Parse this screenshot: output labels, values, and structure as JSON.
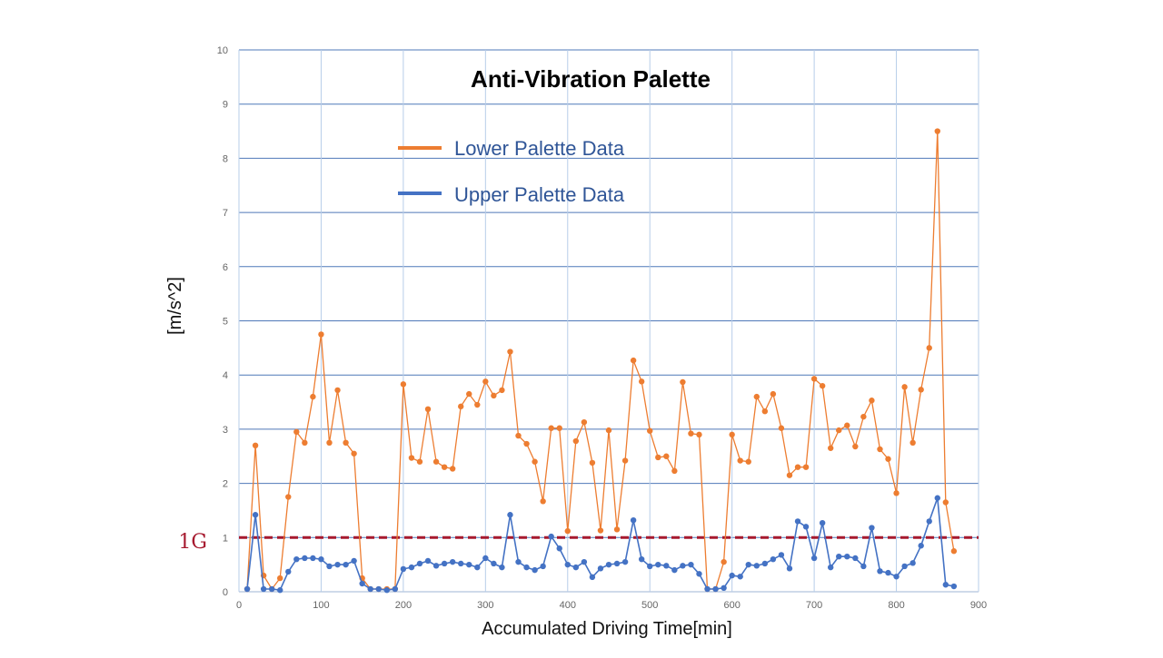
{
  "chart_data": {
    "type": "line",
    "title": "Anti-Vibration Palette",
    "xlabel": "Accumulated Driving Time[min]",
    "ylabel": "[m/s^2]",
    "xlim": [
      0,
      900
    ],
    "ylim": [
      0,
      10
    ],
    "x_ticks": [
      "0",
      "100",
      "200",
      "300",
      "400",
      "500",
      "600",
      "700",
      "800",
      "900"
    ],
    "y_ticks": [
      "0",
      "1",
      "2",
      "3",
      "4",
      "5",
      "6",
      "7",
      "8",
      "9",
      "10"
    ],
    "grid": true,
    "legend_position": "top-center",
    "reference_line": {
      "value": 1,
      "label": "1G",
      "color": "#a6192e",
      "style": "dashed"
    },
    "x": [
      10,
      20,
      30,
      40,
      50,
      60,
      70,
      80,
      90,
      100,
      110,
      120,
      130,
      140,
      150,
      160,
      170,
      180,
      190,
      200,
      210,
      220,
      230,
      240,
      250,
      260,
      270,
      280,
      290,
      300,
      310,
      320,
      330,
      340,
      350,
      360,
      370,
      380,
      390,
      400,
      410,
      420,
      430,
      440,
      450,
      460,
      470,
      480,
      490,
      500,
      510,
      520,
      530,
      540,
      550,
      560,
      570,
      580,
      590,
      600,
      610,
      620,
      630,
      640,
      650,
      660,
      670,
      680,
      690,
      700,
      710,
      720,
      730,
      740,
      750,
      760,
      770,
      780,
      790,
      800,
      810,
      820,
      830,
      840,
      850,
      860,
      870
    ],
    "series": [
      {
        "name": "Lower Palette Data",
        "color": "#ed7d31",
        "values": [
          0.05,
          2.7,
          0.3,
          0.05,
          0.25,
          1.75,
          2.95,
          2.75,
          3.6,
          4.75,
          2.75,
          3.72,
          2.75,
          2.55,
          0.25,
          0.05,
          0.05,
          0.05,
          0.05,
          3.83,
          2.47,
          2.4,
          3.37,
          2.4,
          2.3,
          2.27,
          3.42,
          3.65,
          3.45,
          3.88,
          3.62,
          3.72,
          4.43,
          2.88,
          2.73,
          2.4,
          1.67,
          3.02,
          3.02,
          1.12,
          2.78,
          3.13,
          2.38,
          1.13,
          2.98,
          1.15,
          2.42,
          4.27,
          3.88,
          2.97,
          2.48,
          2.5,
          2.23,
          3.87,
          2.92,
          2.9,
          0.05,
          0.05,
          0.55,
          2.9,
          2.42,
          2.4,
          3.6,
          3.33,
          3.65,
          3.02,
          2.15,
          2.3,
          2.3,
          3.93,
          3.8,
          2.65,
          2.98,
          3.07,
          2.68,
          3.23,
          3.53,
          2.63,
          2.45,
          1.82,
          3.78,
          2.75,
          3.73,
          4.5,
          8.5,
          1.65,
          0.75
        ]
      },
      {
        "name": "Upper Palette Data",
        "color": "#4472c4",
        "values": [
          0.05,
          1.42,
          0.05,
          0.05,
          0.03,
          0.37,
          0.6,
          0.62,
          0.62,
          0.6,
          0.47,
          0.5,
          0.5,
          0.57,
          0.15,
          0.05,
          0.05,
          0.03,
          0.05,
          0.42,
          0.45,
          0.52,
          0.57,
          0.48,
          0.52,
          0.55,
          0.52,
          0.5,
          0.45,
          0.62,
          0.52,
          0.45,
          1.42,
          0.55,
          0.45,
          0.4,
          0.47,
          1.02,
          0.8,
          0.5,
          0.45,
          0.55,
          0.27,
          0.43,
          0.5,
          0.52,
          0.55,
          1.32,
          0.6,
          0.47,
          0.5,
          0.48,
          0.4,
          0.48,
          0.5,
          0.33,
          0.05,
          0.05,
          0.07,
          0.3,
          0.28,
          0.5,
          0.48,
          0.52,
          0.6,
          0.68,
          0.43,
          1.3,
          1.2,
          0.62,
          1.27,
          0.45,
          0.65,
          0.65,
          0.62,
          0.47,
          1.18,
          0.38,
          0.35,
          0.28,
          0.47,
          0.53,
          0.85,
          1.3,
          1.73,
          0.13,
          0.1
        ]
      }
    ]
  }
}
